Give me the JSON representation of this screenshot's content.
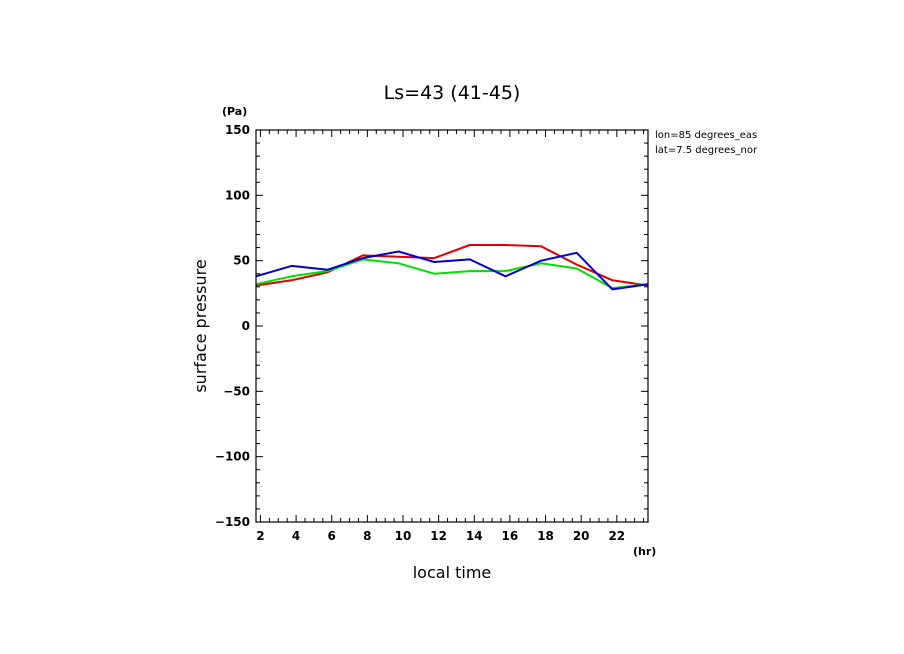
{
  "chart_data": {
    "type": "line",
    "title": "Ls=43 (41-45)",
    "xlabel": "local time",
    "ylabel": "surface pressure",
    "x_unit": "(hr)",
    "y_unit": "(Pa)",
    "annotations": [
      "lon=85 degrees_eas",
      "lat=7.5 degrees_nor"
    ],
    "xlim": [
      1.75,
      23.75
    ],
    "ylim": [
      -150,
      150
    ],
    "x_ticks": [
      2,
      4,
      6,
      8,
      10,
      12,
      14,
      16,
      18,
      20,
      22
    ],
    "y_ticks": [
      -150,
      -100,
      -50,
      0,
      50,
      100,
      150
    ],
    "x": [
      1.75,
      3.75,
      5.75,
      7.75,
      9.75,
      11.75,
      13.75,
      15.75,
      17.75,
      19.75,
      21.75,
      23.75
    ],
    "series": [
      {
        "color": "#e00000",
        "values": [
          31,
          35,
          41,
          54,
          53,
          52,
          62,
          62,
          61,
          47,
          35,
          31
        ]
      },
      {
        "color": "#00e000",
        "values": [
          32,
          38,
          42,
          51,
          48,
          40,
          42,
          42,
          48,
          44,
          29,
          32
        ]
      },
      {
        "color": "#0000d0",
        "values": [
          38,
          46,
          43,
          52,
          57,
          49,
          51,
          38,
          50,
          56,
          28,
          32
        ]
      }
    ],
    "grid": false,
    "legend": "none"
  }
}
